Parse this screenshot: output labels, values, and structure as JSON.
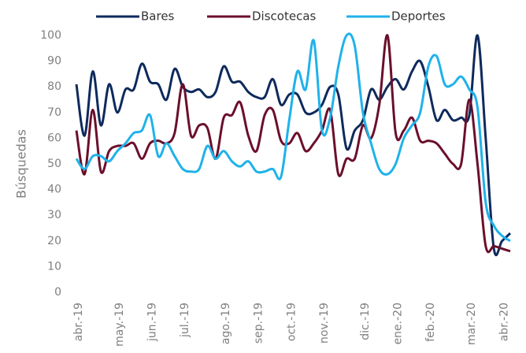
{
  "chart_data": {
    "type": "line",
    "y_label": "Búsquedas",
    "categories": [
      "abr.-19",
      null,
      null,
      null,
      null,
      "may.-19",
      null,
      null,
      null,
      "jun.-19",
      null,
      null,
      null,
      "jul.-19",
      null,
      null,
      null,
      null,
      "ago.-19",
      null,
      null,
      null,
      "sep.-19",
      null,
      null,
      null,
      "oct.-19",
      null,
      null,
      null,
      "nov.-19",
      null,
      null,
      null,
      null,
      "dic.-19",
      null,
      null,
      null,
      "ene.-20",
      null,
      null,
      null,
      "feb.-20",
      null,
      null,
      null,
      null,
      "mar.-20",
      null,
      null,
      null,
      "abr.-20",
      null
    ],
    "series": [
      {
        "name": "Bares",
        "color": "#0e2a5c",
        "values": [
          81,
          61,
          86,
          65,
          81,
          70,
          79,
          79,
          89,
          82,
          81,
          75,
          87,
          80,
          78,
          79,
          76,
          78,
          88,
          82,
          82,
          78,
          76,
          76,
          83,
          73,
          77,
          77,
          70,
          70,
          73,
          80,
          77,
          56,
          63,
          67,
          79,
          75,
          80,
          83,
          79,
          86,
          90,
          80,
          67,
          71,
          67,
          68,
          69,
          100,
          60,
          17,
          20,
          23
        ]
      },
      {
        "name": "Discotecas",
        "color": "#6b0f2b",
        "values": [
          63,
          46,
          71,
          47,
          55,
          57,
          57,
          58,
          52,
          58,
          59,
          58,
          62,
          81,
          61,
          65,
          64,
          52,
          68,
          69,
          74,
          61,
          55,
          69,
          71,
          59,
          58,
          62,
          55,
          58,
          63,
          71,
          46,
          52,
          52,
          65,
          60,
          73,
          100,
          62,
          63,
          68,
          59,
          59,
          58,
          54,
          50,
          50,
          75,
          50,
          18,
          18,
          17,
          16
        ]
      },
      {
        "name": "Deportes",
        "color": "#1fb2ea",
        "values": [
          52,
          48,
          53,
          53,
          51,
          55,
          58,
          62,
          63,
          69,
          53,
          58,
          53,
          48,
          47,
          48,
          57,
          52,
          55,
          51,
          49,
          51,
          47,
          47,
          48,
          45,
          67,
          86,
          79,
          98,
          63,
          68,
          88,
          100,
          96,
          70,
          58,
          48,
          46,
          50,
          60,
          65,
          70,
          88,
          92,
          81,
          81,
          84,
          79,
          72,
          35,
          26,
          22,
          20
        ]
      }
    ],
    "ylim": [
      0,
      100
    ],
    "yticks": [
      0,
      10,
      20,
      30,
      40,
      50,
      60,
      70,
      80,
      90,
      100
    ],
    "grid": false,
    "legend": "top"
  }
}
